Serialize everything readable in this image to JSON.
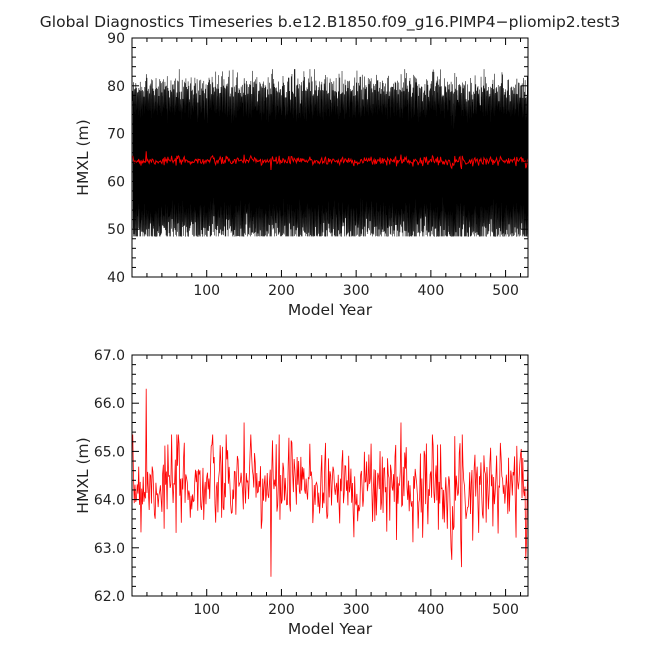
{
  "figure": {
    "title": "Global Diagnostics Timeseries b.e12.B1850.f09_g16.PIMP4−pliomip2.test3"
  },
  "chart_data": [
    {
      "type": "line",
      "xlabel": "Model Year",
      "ylabel": "HMXL (m)",
      "xlim": [
        0,
        530
      ],
      "ylim": [
        40,
        90
      ],
      "x_ticks": [
        100,
        200,
        300,
        400,
        500
      ],
      "y_ticks": [
        40,
        50,
        60,
        70,
        80,
        90
      ],
      "grid": false,
      "series": [
        {
          "kind": "monthly",
          "color": "#000000",
          "x_range": [
            1,
            530
          ],
          "approx_mean": 64.3,
          "approx_max": 83.5,
          "approx_min": 49.5
        },
        {
          "kind": "annual_mean",
          "color": "#ff0000",
          "x_range": [
            1,
            530
          ],
          "approx_mean": 64.3
        }
      ]
    },
    {
      "type": "line",
      "xlabel": "Model Year",
      "ylabel": "HMXL (m)",
      "xlim": [
        0,
        530
      ],
      "ylim": [
        62.0,
        67.0
      ],
      "x_ticks": [
        100,
        200,
        300,
        400,
        500
      ],
      "y_ticks": [
        "62.0",
        "63.0",
        "64.0",
        "65.0",
        "66.0",
        "67.0"
      ],
      "grid": false,
      "series": [
        {
          "kind": "annual_mean",
          "color": "#ff0000",
          "x_range": [
            1,
            530
          ],
          "approx_mean": 64.3,
          "peaks": [
            {
              "x": 19,
              "y": 66.3
            },
            {
              "x": 150,
              "y": 65.6
            },
            {
              "x": 186,
              "y": 62.4
            },
            {
              "x": 360,
              "y": 65.6
            },
            {
              "x": 441,
              "y": 62.6
            }
          ]
        }
      ]
    }
  ]
}
